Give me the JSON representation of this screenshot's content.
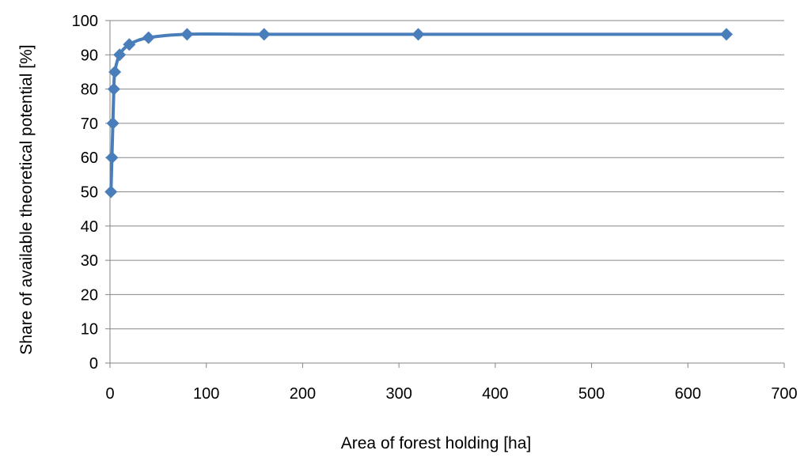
{
  "chart_data": {
    "type": "line",
    "title": "",
    "xlabel": "Area of forest holding  [ha]",
    "ylabel": "Share of  available theoretical potential  [%]",
    "xlim": [
      0,
      700
    ],
    "ylim": [
      0,
      100
    ],
    "x_ticks": [
      0,
      100,
      200,
      300,
      400,
      500,
      600,
      700
    ],
    "y_ticks": [
      0,
      10,
      20,
      30,
      40,
      50,
      60,
      70,
      80,
      90,
      100
    ],
    "grid": "horizontal",
    "legend": "none",
    "series": [
      {
        "color": "#4a7ebb",
        "marker": "diamond",
        "x": [
          1,
          2,
          3,
          4,
          5,
          10,
          20,
          40,
          80,
          160,
          320,
          640
        ],
        "y": [
          50,
          60,
          70,
          80,
          85,
          90,
          93,
          95,
          96,
          96,
          96,
          96
        ]
      }
    ]
  }
}
